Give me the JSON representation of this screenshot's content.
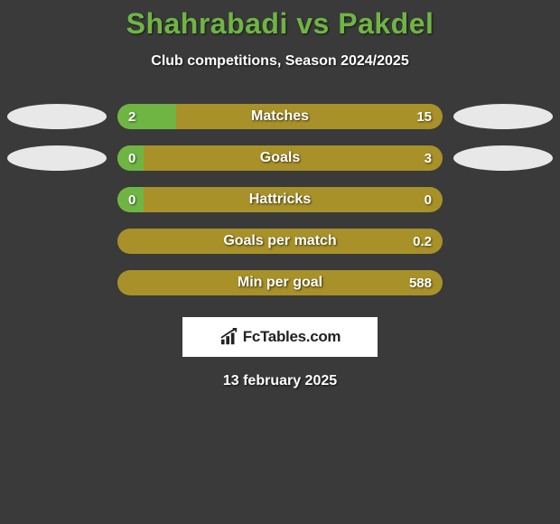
{
  "title": "Shahrabadi vs Pakdel",
  "subtitle": "Club competitions, Season 2024/2025",
  "date": "13 february 2025",
  "logo_text": "FcTables.com",
  "colors": {
    "background": "#3a3a3a",
    "title": "#6fb544",
    "left_bar": "#6fb544",
    "right_bar": "#a89128",
    "oval": "#e8e8e8",
    "logo_bg": "#ffffff",
    "logo_text": "#222222",
    "text": "#ffffff"
  },
  "rows": [
    {
      "label": "Matches",
      "left": "2",
      "right": "15",
      "left_pct": 18,
      "show_ovals": true
    },
    {
      "label": "Goals",
      "left": "0",
      "right": "3",
      "left_pct": 8,
      "show_ovals": true
    },
    {
      "label": "Hattricks",
      "left": "0",
      "right": "0",
      "left_pct": 8,
      "show_ovals": false
    },
    {
      "label": "Goals per match",
      "left": "",
      "right": "0.2",
      "left_pct": 0,
      "show_ovals": false
    },
    {
      "label": "Min per goal",
      "left": "",
      "right": "588",
      "left_pct": 0,
      "show_ovals": false
    }
  ]
}
